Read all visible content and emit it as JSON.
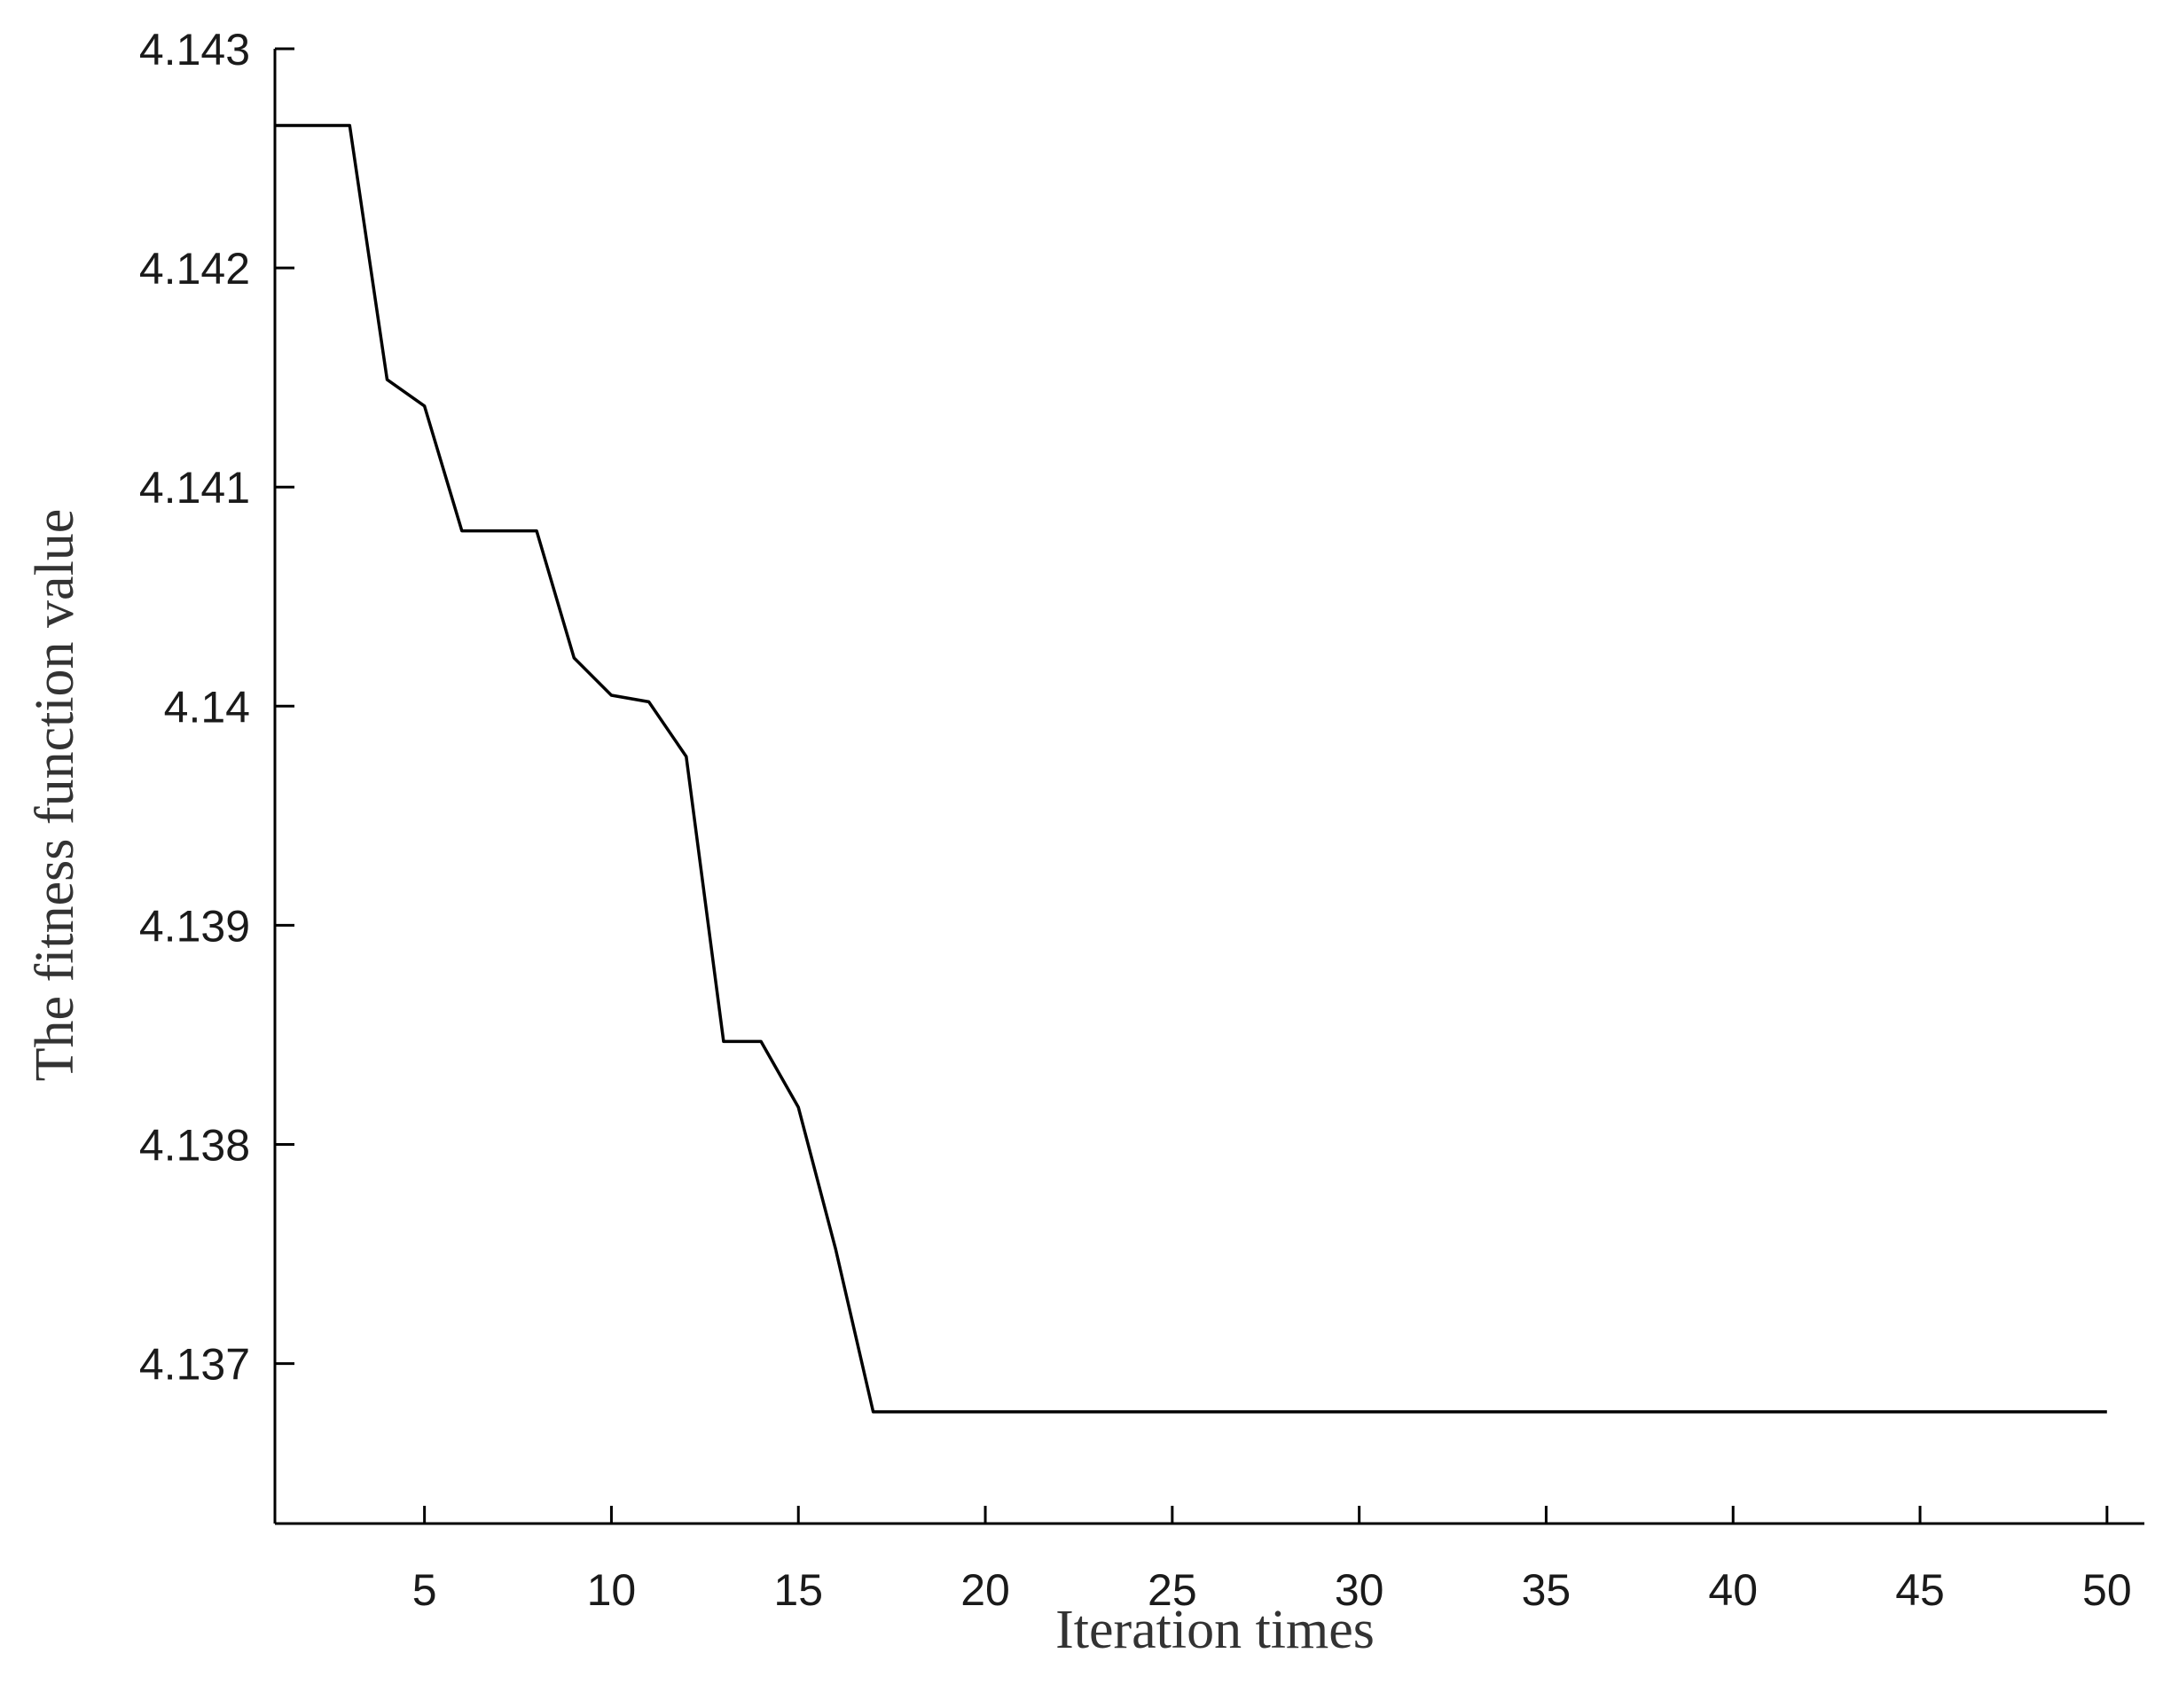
{
  "chart_data": {
    "type": "line",
    "xlabel": "Iteration times",
    "ylabel": "The fitness function value",
    "xlim": [
      1,
      51
    ],
    "ylim": [
      4.13627,
      4.143
    ],
    "x_ticks": [
      5,
      10,
      15,
      20,
      25,
      30,
      35,
      40,
      45,
      50
    ],
    "x_tick_labels": [
      "5",
      "10",
      "15",
      "20",
      "25",
      "30",
      "35",
      "40",
      "45",
      "50"
    ],
    "y_ticks": [
      4.137,
      4.138,
      4.139,
      4.14,
      4.141,
      4.142,
      4.143
    ],
    "y_tick_labels": [
      "4.137",
      "4.138",
      "4.139",
      "4.14",
      "4.141",
      "4.142",
      "4.143"
    ],
    "grid": false,
    "series": [
      {
        "color": "#000000",
        "x": [
          1,
          2,
          3,
          4,
          5,
          6,
          7,
          8,
          9,
          10,
          11,
          12,
          13,
          14,
          15,
          16,
          17,
          18,
          19,
          20,
          21,
          22,
          23,
          24,
          25,
          26,
          27,
          28,
          29,
          30,
          31,
          32,
          33,
          34,
          35,
          36,
          37,
          38,
          39,
          40,
          41,
          42,
          43,
          44,
          45,
          46,
          47,
          48,
          49,
          50
        ],
        "y": [
          4.14265,
          4.14265,
          4.14265,
          4.14149,
          4.14137,
          4.1408,
          4.1408,
          4.1408,
          4.14022,
          4.14005,
          4.14002,
          4.13977,
          4.13847,
          4.13847,
          4.13817,
          4.13752,
          4.13678,
          4.13678,
          4.13678,
          4.13678,
          4.13678,
          4.13678,
          4.13678,
          4.13678,
          4.13678,
          4.13678,
          4.13678,
          4.13678,
          4.13678,
          4.13678,
          4.13678,
          4.13678,
          4.13678,
          4.13678,
          4.13678,
          4.13678,
          4.13678,
          4.13678,
          4.13678,
          4.13678,
          4.13678,
          4.13678,
          4.13678,
          4.13678,
          4.13678,
          4.13678,
          4.13678,
          4.13678,
          4.13678,
          4.13678
        ]
      }
    ]
  }
}
